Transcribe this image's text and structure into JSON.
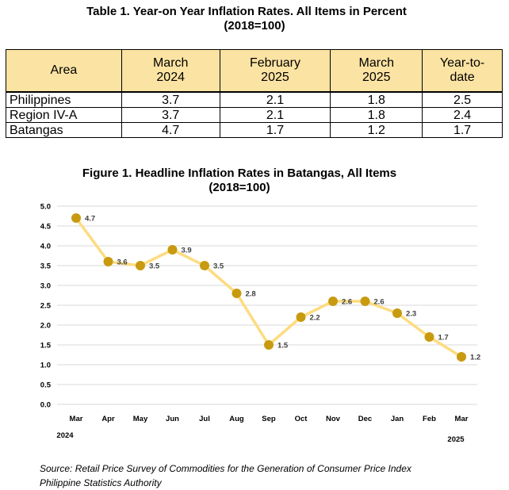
{
  "table": {
    "title": "Table 1. Year-on Year Inflation Rates.  All Items in Percent",
    "subtitle": "(2018=100)",
    "headers": [
      [
        "Area"
      ],
      [
        "March",
        "2024"
      ],
      [
        "February",
        "2025"
      ],
      [
        "March",
        "2025"
      ],
      [
        "Year-to-",
        "date"
      ]
    ],
    "rows": [
      {
        "area": "Philippines",
        "values": [
          "3.7",
          "2.1",
          "1.8",
          "2.5"
        ]
      },
      {
        "area": "Region IV-A",
        "values": [
          "3.7",
          "2.1",
          "1.8",
          "2.4"
        ]
      },
      {
        "area": "Batangas",
        "values": [
          "4.7",
          "1.7",
          "1.2",
          "1.7"
        ]
      }
    ]
  },
  "chart_data": {
    "type": "line",
    "title": "Figure 1. Headline Inflation Rates in Batangas, All Items",
    "subtitle": "(2018=100)",
    "categories": [
      "Mar",
      "Apr",
      "May",
      "Jun",
      "Jul",
      "Aug",
      "Sep",
      "Oct",
      "Nov",
      "Dec",
      "Jan",
      "Feb",
      "Mar"
    ],
    "year_labels": {
      "start": "2024",
      "end": "2025"
    },
    "values": [
      4.7,
      3.6,
      3.5,
      3.9,
      3.5,
      2.8,
      1.5,
      2.2,
      2.6,
      2.6,
      2.3,
      1.7,
      1.2
    ],
    "data_labels": [
      "4.7",
      "3.6",
      "3.5",
      "3.9",
      "3.5",
      "2.8",
      "1.5",
      "2.2",
      "2.6",
      "2.6",
      "2.3",
      "1.7",
      "1.2"
    ],
    "y_ticks": [
      "0.0",
      "0.5",
      "1.0",
      "1.5",
      "2.0",
      "2.5",
      "3.0",
      "3.5",
      "4.0",
      "4.5",
      "5.0"
    ],
    "ylim": [
      0,
      5
    ],
    "grid": true,
    "line_color": "#fddc80",
    "marker_color": "#c89a10",
    "grid_color": "#d9d9d9"
  },
  "source": {
    "line1": "Source: Retail Price Survey of Commodities for the Generation of Consumer Price Index",
    "line2": "Philippine Statistics Authority"
  }
}
